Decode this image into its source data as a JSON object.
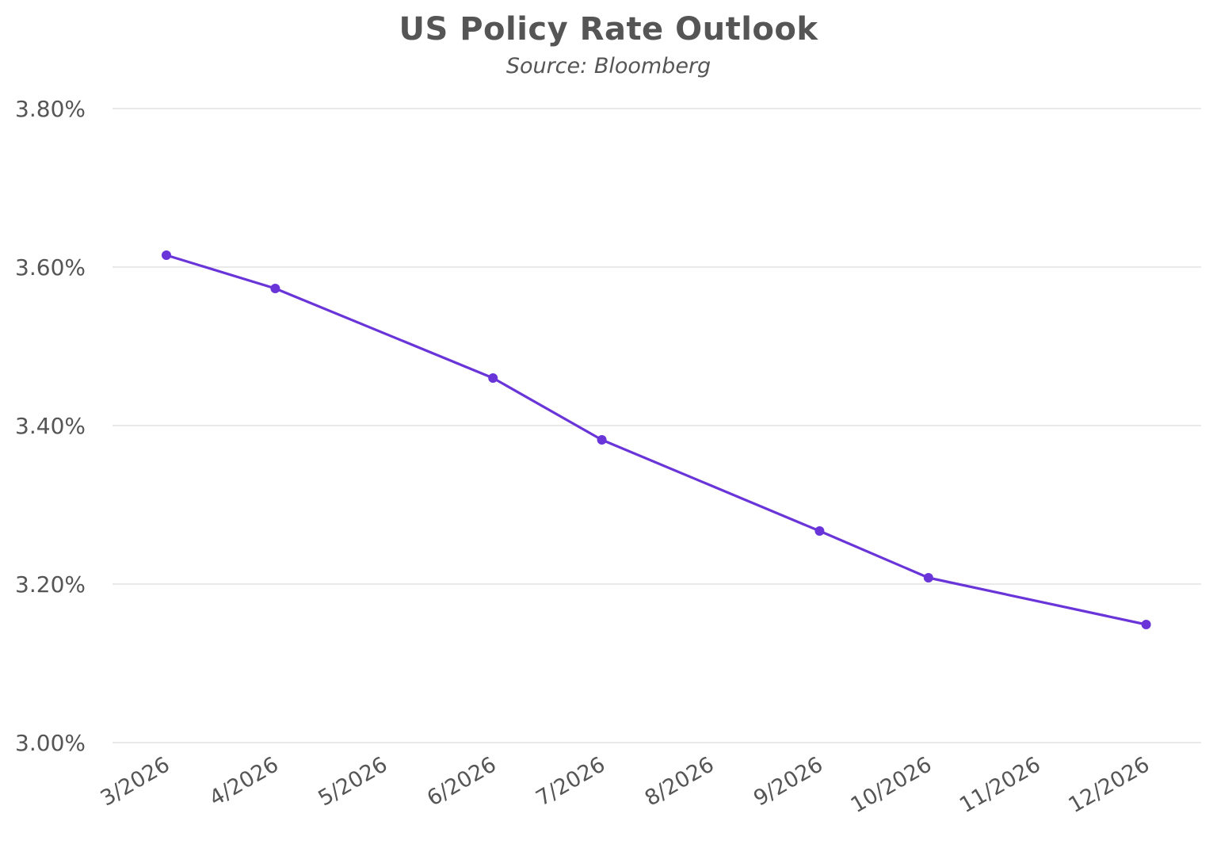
{
  "chart_data": {
    "type": "line",
    "title": "US Policy Rate Outlook",
    "subtitle": "Source: Bloomberg",
    "xlabel": "",
    "ylabel": "",
    "categories": [
      "3/2026",
      "4/2026",
      "5/2026",
      "6/2026",
      "7/2026",
      "8/2026",
      "9/2026",
      "10/2026",
      "11/2026",
      "12/2026"
    ],
    "series": [
      {
        "points": [
          {
            "x": "3/2026",
            "y": 3.615
          },
          {
            "x": "4/2026",
            "y": 3.573
          },
          {
            "x": "6/2026",
            "y": 3.46
          },
          {
            "x": "7/2026",
            "y": 3.382
          },
          {
            "x": "9/2026",
            "y": 3.267
          },
          {
            "x": "10/2026",
            "y": 3.208
          },
          {
            "x": "12/2026",
            "y": 3.149
          }
        ]
      }
    ],
    "yticks": [
      3.0,
      3.2,
      3.4,
      3.6,
      3.8
    ],
    "ytick_labels": [
      "3.00%",
      "3.20%",
      "3.40%",
      "3.60%",
      "3.80%"
    ],
    "ylim": [
      3.0,
      3.8
    ],
    "grid": "horizontal",
    "legend": "none",
    "colors": {
      "line": "#6a35d8",
      "grid": "#dcdcdc",
      "text": "#555555"
    }
  }
}
